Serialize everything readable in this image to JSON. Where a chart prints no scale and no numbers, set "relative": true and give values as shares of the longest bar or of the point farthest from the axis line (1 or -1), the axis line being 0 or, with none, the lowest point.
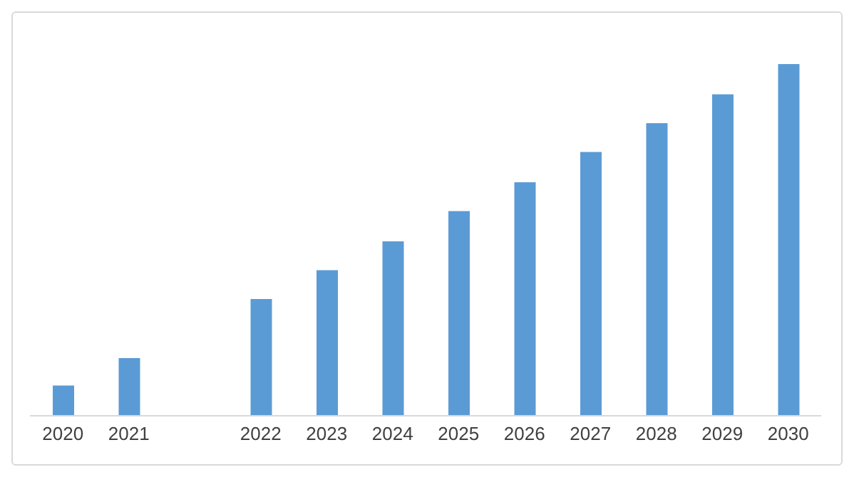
{
  "chart_data": {
    "type": "bar",
    "relative": true,
    "categories": [
      "2020",
      "2021",
      null,
      "2022",
      "2023",
      "2024",
      "2025",
      "2026",
      "2027",
      "2028",
      "2029",
      "2030"
    ],
    "values": [
      0.086,
      0.164,
      null,
      0.332,
      0.414,
      0.496,
      0.582,
      0.664,
      0.75,
      0.832,
      0.914,
      1
    ],
    "color": "#5b9bd5",
    "grid": false,
    "legend": false
  }
}
